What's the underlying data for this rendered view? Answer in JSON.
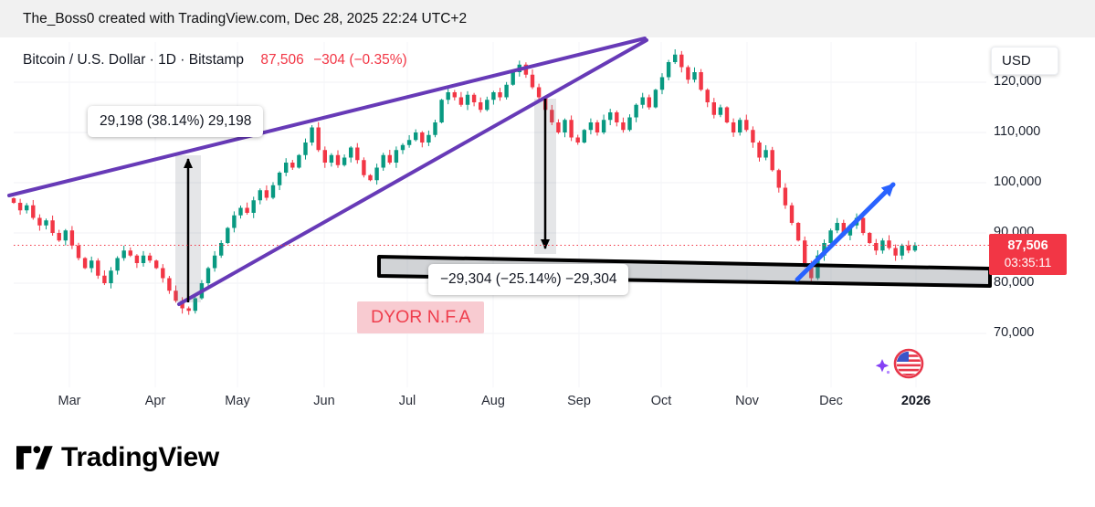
{
  "attribution": {
    "text": "The_Boss0 created with TradingView.com, Dec 28, 2025 22:24 UTC+2"
  },
  "header": {
    "symbol_title": "Bitcoin / U.S. Dollar · 1D · Bitstamp",
    "last_price": "87,506",
    "change": "−304 (−0.35%)"
  },
  "price_axis": {
    "currency_label": "USD"
  },
  "price_badge": {
    "price": "87,506",
    "countdown": "03:35:11"
  },
  "logo": {
    "text": "TradingView"
  },
  "colors": {
    "up": "#089981",
    "down": "#f23645",
    "trendline": "#673ab7",
    "arrow_blue": "#2962ff",
    "accent_red": "#f23645",
    "drawing_black": "#000000"
  },
  "chart_data": {
    "type": "candlestick",
    "title": "Bitcoin / U.S. Dollar, 1D, Bitstamp",
    "symbol": "BTC/USD",
    "exchange": "Bitstamp",
    "timeframe": "1D",
    "last_price": 87506,
    "change": -304,
    "change_pct": -0.35,
    "ylim": [
      58000,
      128000
    ],
    "y_ticks": [
      120000,
      110000,
      100000,
      90000,
      80000,
      70000
    ],
    "y_tick_labels": [
      "120,000",
      "110,000",
      "100,000",
      "90,000",
      "80,000",
      "70,000"
    ],
    "x_tick_labels": [
      "Mar",
      "Apr",
      "May",
      "Jun",
      "Jul",
      "Aug",
      "Sep",
      "Oct",
      "Nov",
      "Dec",
      "2026"
    ],
    "closes": [
      96000,
      94500,
      95500,
      93000,
      91500,
      92500,
      90000,
      88500,
      90500,
      87500,
      85000,
      83000,
      84500,
      81500,
      80000,
      82500,
      85000,
      86500,
      85500,
      84000,
      85500,
      84500,
      83000,
      81000,
      78500,
      76500,
      75000,
      74500,
      77000,
      80000,
      83000,
      85500,
      88000,
      91000,
      93500,
      95000,
      94000,
      96500,
      98500,
      97000,
      99500,
      102000,
      104000,
      103000,
      105500,
      108000,
      111000,
      106500,
      104000,
      105500,
      103500,
      105000,
      107000,
      104500,
      101500,
      100500,
      103000,
      105500,
      104000,
      106500,
      107500,
      108500,
      110000,
      108000,
      109500,
      112000,
      116500,
      118000,
      117000,
      115500,
      117500,
      116000,
      114500,
      116500,
      118000,
      117000,
      119500,
      122000,
      123500,
      121500,
      119000,
      117000,
      114500,
      112000,
      110000,
      112500,
      109000,
      108000,
      110500,
      112000,
      110000,
      112500,
      114000,
      112000,
      110500,
      113000,
      115500,
      117000,
      115000,
      118500,
      121000,
      124000,
      125500,
      123000,
      120500,
      122000,
      118500,
      116000,
      113500,
      115000,
      112000,
      110000,
      112500,
      110500,
      108000,
      105000,
      106500,
      102500,
      99000,
      95500,
      92000,
      88500,
      84000,
      81000,
      85500,
      88000,
      90500,
      92000,
      89500,
      91500,
      93000,
      90000,
      88000,
      86500,
      88500,
      87000,
      85500,
      87500,
      86500,
      87506
    ],
    "annotations": [
      {
        "type": "price_range_measure",
        "label": "29,198 (38.14%) 29,198",
        "direction": "up",
        "change_value": 29198,
        "change_pct": 38.14
      },
      {
        "type": "price_range_measure",
        "label": "−29,304 (−25.14%) −29,304",
        "direction": "down",
        "change_value": -29304,
        "change_pct": -25.14
      },
      {
        "type": "text",
        "text": "DYOR N.F.A"
      },
      {
        "type": "trend_lines",
        "description": "two rising purple trend lines forming a converging wedge"
      },
      {
        "type": "support_zone",
        "description": "black-bordered horizontal gray zone near 80,000–85,000"
      },
      {
        "type": "arrow",
        "description": "blue up-right projection arrow",
        "color": "#2962ff"
      }
    ]
  }
}
